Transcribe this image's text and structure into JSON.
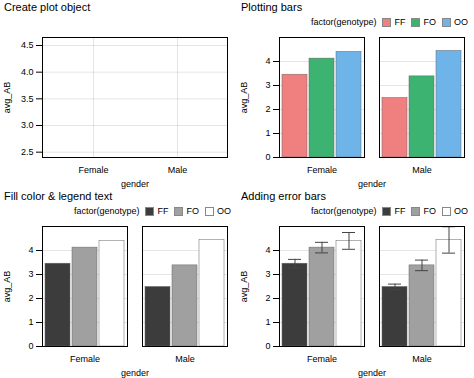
{
  "chart_data": [
    {
      "type": "bar",
      "title": "Create plot object",
      "xlabel": "gender",
      "ylabel": "avg_AB",
      "categories": [
        "Female",
        "Male"
      ],
      "series": [],
      "ylim": [
        2.4,
        4.65
      ],
      "yticks": [
        2.5,
        {
          "value": 3,
          "label": "3.0"
        },
        3.5,
        {
          "value": 4,
          "label": "4.0"
        },
        4.5
      ],
      "grid": true
    },
    {
      "type": "bar",
      "title": "Plotting bars",
      "xlabel": "gender",
      "ylabel": "avg_AB",
      "categories": [
        "Female",
        "Male"
      ],
      "series": [
        {
          "name": "FF",
          "color": "#F08080",
          "values": [
            3.45,
            2.48
          ]
        },
        {
          "name": "FO",
          "color": "#3CB371",
          "values": [
            4.12,
            3.38
          ]
        },
        {
          "name": "OO",
          "color": "#6EB4E8",
          "values": [
            4.4,
            4.44
          ]
        }
      ],
      "ylim": [
        0,
        5
      ],
      "yticks": [
        0,
        1,
        2,
        3,
        4
      ],
      "grid": "y",
      "legend": "upper right",
      "legend_title": "factor(genotype)"
    },
    {
      "type": "bar",
      "title": "Fill color & legend text",
      "xlabel": "gender",
      "ylabel": "avg_AB",
      "categories": [
        "Female",
        "Male"
      ],
      "series": [
        {
          "name": "FF",
          "color": "#3C3C3C",
          "values": [
            3.45,
            2.48
          ]
        },
        {
          "name": "FO",
          "color": "#A0A0A0",
          "values": [
            4.12,
            3.38
          ]
        },
        {
          "name": "OO",
          "color": "#FFFFFF",
          "values": [
            4.4,
            4.44
          ]
        }
      ],
      "ylim": [
        0,
        5
      ],
      "yticks": [
        0,
        1,
        2,
        3,
        4
      ],
      "grid": "y",
      "legend": "upper right",
      "legend_title": "factor(genotype)"
    },
    {
      "type": "bar",
      "title": "Adding error bars",
      "xlabel": "gender",
      "ylabel": "avg_AB",
      "categories": [
        "Female",
        "Male"
      ],
      "series": [
        {
          "name": "FF",
          "color": "#3C3C3C",
          "values": [
            3.45,
            2.48
          ],
          "errors": [
            0.18,
            0.12
          ]
        },
        {
          "name": "FO",
          "color": "#A0A0A0",
          "values": [
            4.12,
            3.38
          ],
          "errors": [
            0.22,
            0.22
          ]
        },
        {
          "name": "OO",
          "color": "#FFFFFF",
          "values": [
            4.4,
            4.44
          ],
          "errors": [
            0.35,
            0.55
          ]
        }
      ],
      "ylim": [
        0,
        5
      ],
      "yticks": [
        0,
        1,
        2,
        3,
        4
      ],
      "grid": "y",
      "legend": "upper right",
      "legend_title": "factor(genotype)"
    }
  ]
}
